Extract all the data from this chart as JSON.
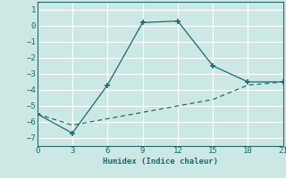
{
  "title": "",
  "xlabel": "Humidex (Indice chaleur)",
  "ylabel": "",
  "bg_color": "#cce8e4",
  "grid_color": "#ffffff",
  "line_color": "#1a6b6b",
  "xlim": [
    0,
    21
  ],
  "ylim": [
    -7.5,
    1.5
  ],
  "xticks": [
    0,
    3,
    6,
    9,
    12,
    15,
    18,
    21
  ],
  "yticks": [
    -7,
    -6,
    -5,
    -4,
    -3,
    -2,
    -1,
    0,
    1
  ],
  "solid_x": [
    0,
    3,
    6,
    9,
    12,
    15,
    18,
    21
  ],
  "solid_y": [
    -5.5,
    -6.7,
    -3.7,
    0.2,
    0.3,
    -2.5,
    -3.5,
    -3.5
  ],
  "dashed_x": [
    0,
    3,
    6,
    9,
    12,
    15,
    18,
    21
  ],
  "dashed_y": [
    -5.5,
    -6.2,
    -5.8,
    -5.4,
    -5.0,
    -4.6,
    -3.7,
    -3.5
  ]
}
